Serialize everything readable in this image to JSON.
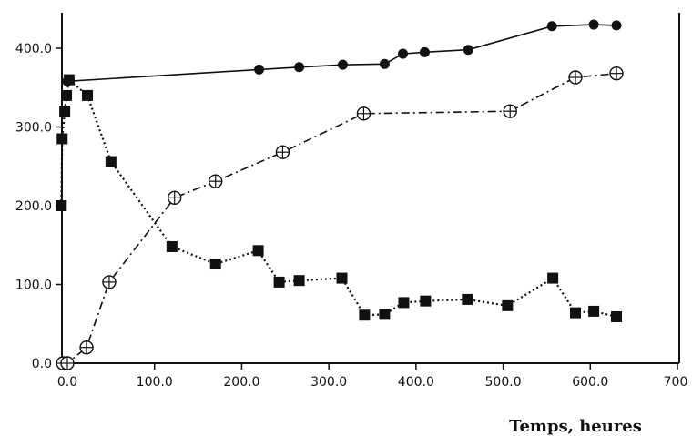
{
  "chart_data": {
    "type": "line",
    "title": "",
    "xlabel": "Temps, heures",
    "ylabel": "",
    "xlim": [
      0,
      700
    ],
    "ylim": [
      0,
      400
    ],
    "x_ticks": [
      "0.0",
      "100.0",
      "200.0",
      "300.0",
      "400.0",
      "500.0",
      "600.0",
      "700"
    ],
    "y_ticks": [
      "0.0",
      "100.0",
      "200.0",
      "300.0",
      "400.0"
    ],
    "grid": false,
    "legend": "none",
    "series": [
      {
        "marker": "filled-circle",
        "line_style": "solid",
        "color": "#111111",
        "points": [
          [
            0,
            358
          ],
          [
            220,
            373
          ],
          [
            266,
            376
          ],
          [
            316,
            379
          ],
          [
            364,
            380
          ],
          [
            385,
            393
          ],
          [
            410,
            395
          ],
          [
            460,
            398
          ],
          [
            556,
            428
          ],
          [
            604,
            430
          ],
          [
            630,
            429
          ]
        ]
      },
      {
        "marker": "circle-plus",
        "line_style": "dash-dot",
        "color": "#111111",
        "points": [
          [
            -5,
            0
          ],
          [
            0,
            0
          ],
          [
            22,
            20
          ],
          [
            48,
            103
          ],
          [
            123,
            210
          ],
          [
            170,
            231
          ],
          [
            247,
            268
          ],
          [
            340,
            317
          ],
          [
            508,
            320
          ],
          [
            583,
            363
          ],
          [
            630,
            368
          ]
        ]
      },
      {
        "marker": "filled-square",
        "line_style": "dotted",
        "color": "#111111",
        "points": [
          [
            -7,
            200
          ],
          [
            -6,
            285
          ],
          [
            -3,
            320
          ],
          [
            -1,
            340
          ],
          [
            2,
            360
          ],
          [
            23,
            340
          ],
          [
            50,
            256
          ],
          [
            120,
            148
          ],
          [
            170,
            126
          ],
          [
            219,
            143
          ],
          [
            243,
            103
          ],
          [
            266,
            105
          ],
          [
            315,
            108
          ],
          [
            341,
            61
          ],
          [
            364,
            62
          ],
          [
            386,
            77
          ],
          [
            411,
            79
          ],
          [
            459,
            81
          ],
          [
            505,
            73
          ],
          [
            557,
            108
          ],
          [
            583,
            64
          ],
          [
            604,
            66
          ],
          [
            630,
            59
          ]
        ]
      }
    ]
  }
}
